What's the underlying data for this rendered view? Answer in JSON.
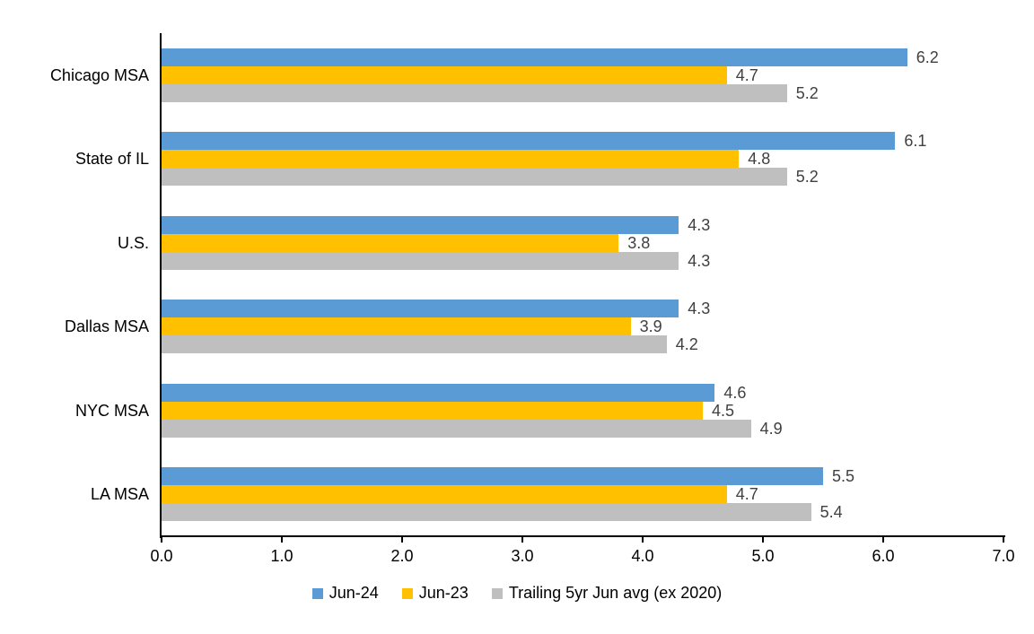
{
  "chart_data": {
    "type": "bar",
    "orientation": "horizontal",
    "title": "",
    "categories": [
      "Chicago MSA",
      "State of IL",
      "U.S.",
      "Dallas MSA",
      "NYC MSA",
      "LA MSA"
    ],
    "series": [
      {
        "name": "Jun-24",
        "color": "#5B9BD5",
        "values": [
          6.2,
          6.1,
          4.3,
          4.3,
          4.6,
          5.5
        ]
      },
      {
        "name": "Jun-23",
        "color": "#FFC000",
        "values": [
          4.7,
          4.8,
          3.8,
          3.9,
          4.5,
          4.7
        ]
      },
      {
        "name": "Trailing 5yr Jun avg (ex 2020)",
        "color": "#BFBFBF",
        "values": [
          5.2,
          5.2,
          4.3,
          4.2,
          4.9,
          5.4
        ]
      }
    ],
    "x_axis": {
      "min": 0,
      "max": 7,
      "tick_interval": 1,
      "tick_labels": [
        "0.0",
        "1.0",
        "2.0",
        "3.0",
        "4.0",
        "5.0",
        "6.0",
        "7.0"
      ]
    },
    "data_labels": true,
    "value_label_color": "#404040",
    "axis_color": "#000000",
    "legend_position": "bottom",
    "grid": false
  }
}
